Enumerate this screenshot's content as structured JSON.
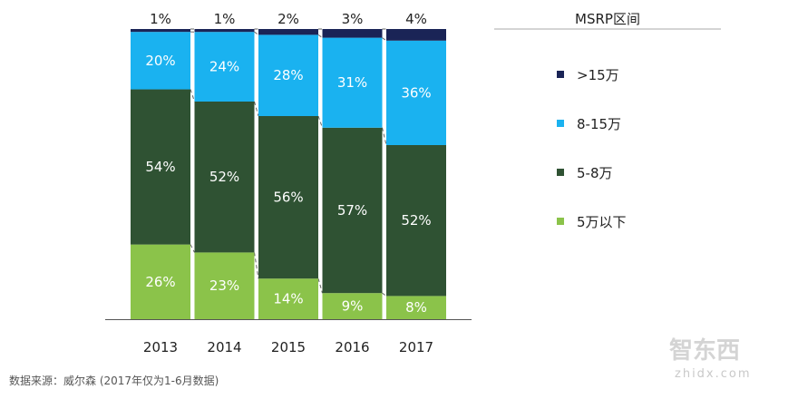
{
  "chart_data": {
    "type": "bar",
    "stacked": true,
    "categories": [
      "2013",
      "2014",
      "2015",
      "2016",
      "2017"
    ],
    "series": [
      {
        "name": "5万以下",
        "values": [
          26,
          23,
          14,
          9,
          8
        ],
        "labels": [
          "26%",
          "23%",
          "14%",
          "9%",
          "8%"
        ],
        "color": "#8bc34a"
      },
      {
        "name": "5-8万",
        "values": [
          54,
          52,
          56,
          57,
          52
        ],
        "labels": [
          "54%",
          "52%",
          "56%",
          "57%",
          "52%"
        ],
        "color": "#2f5233"
      },
      {
        "name": "8-15万",
        "values": [
          20,
          24,
          28,
          31,
          36
        ],
        "labels": [
          "20%",
          "24%",
          "28%",
          "31%",
          "36%"
        ],
        "color": "#1ab2f0"
      },
      {
        "name": ">15万",
        "values": [
          1,
          1,
          2,
          3,
          4
        ],
        "labels": [
          "1%",
          "1%",
          "2%",
          "3%",
          "4%"
        ],
        "color": "#1a2456"
      }
    ],
    "legend_title": "MSRP区间",
    "legend_position": "right",
    "ylim": [
      0,
      100
    ],
    "grid": false,
    "connector_lines": "dashed"
  },
  "source": "数据来源：威尔森 (2017年仅为1-6月数据)",
  "watermark": {
    "text": "智东西",
    "sub": "zhidx.com"
  }
}
